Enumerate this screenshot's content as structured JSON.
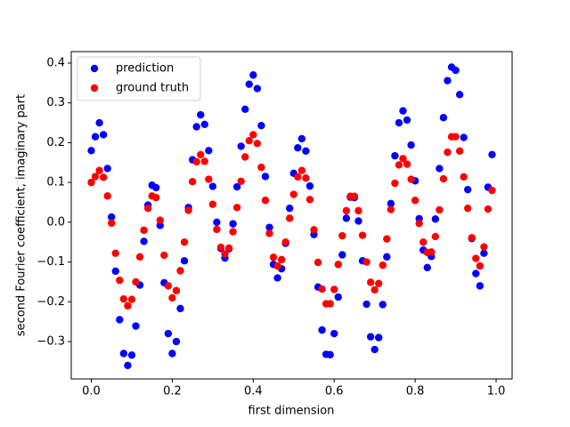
{
  "chart_data": {
    "type": "scatter",
    "xlabel": "first dimension",
    "ylabel": "second Fourier coefficient, imaginary part",
    "xlim": [
      -0.0495,
      1.0395
    ],
    "ylim": [
      -0.394,
      0.429
    ],
    "xticks": [
      {
        "value": 0,
        "label": "0.0"
      },
      0.2,
      0.4,
      0.6,
      0.8,
      {
        "value": 1,
        "label": "1.0"
      }
    ],
    "yticks": [
      {
        "value": -0.3,
        "label": "−0.3"
      },
      {
        "value": -0.2,
        "label": "−0.2"
      },
      {
        "value": -0.1,
        "label": "−0.1"
      },
      {
        "value": 0,
        "label": "0.0"
      },
      0.1,
      0.2,
      0.3,
      0.4
    ],
    "legend": "upper left",
    "x": [
      0,
      0.01,
      0.02,
      0.03,
      0.04,
      0.05,
      0.06,
      0.07,
      0.08,
      0.09,
      0.1,
      0.11,
      0.12,
      0.13,
      0.14,
      0.15,
      0.16,
      0.17,
      0.18,
      0.19,
      0.2,
      0.21,
      0.22,
      0.23,
      0.24,
      0.25,
      0.26,
      0.27,
      0.28,
      0.29,
      0.3,
      0.31,
      0.32,
      0.33,
      0.34,
      0.35,
      0.36,
      0.37,
      0.38,
      0.39,
      0.4,
      0.41,
      0.42,
      0.43,
      0.44,
      0.45,
      0.46,
      0.47,
      0.48,
      0.49,
      0.5,
      0.51,
      0.52,
      0.53,
      0.54,
      0.55,
      0.56,
      0.57,
      0.58,
      0.59,
      0.6,
      0.61,
      0.62,
      0.63,
      0.64,
      0.65,
      0.66,
      0.67,
      0.68,
      0.69,
      0.7,
      0.71,
      0.72,
      0.73,
      0.74,
      0.75,
      0.76,
      0.77,
      0.78,
      0.79,
      0.8,
      0.81,
      0.82,
      0.83,
      0.84,
      0.85,
      0.86,
      0.87,
      0.88,
      0.89,
      0.9,
      0.91,
      0.92,
      0.93,
      0.94,
      0.95,
      0.96,
      0.97,
      0.98,
      0.99
    ],
    "series": [
      {
        "name": "prediction",
        "color": "blue",
        "values": [
          0.18,
          0.215,
          0.25,
          0.22,
          0.135,
          0.013,
          -0.123,
          -0.245,
          -0.33,
          -0.36,
          -0.334,
          -0.261,
          -0.158,
          -0.048,
          0.043,
          0.093,
          0.087,
          -0.008,
          -0.152,
          -0.28,
          -0.33,
          -0.3,
          -0.217,
          -0.097,
          0.037,
          0.157,
          0.24,
          0.27,
          0.246,
          0.18,
          0.09,
          0,
          -0.066,
          -0.09,
          -0.067,
          -0.004,
          0.089,
          0.191,
          0.284,
          0.347,
          0.37,
          0.336,
          0.243,
          0.115,
          -0.013,
          -0.106,
          -0.14,
          -0.117,
          -0.053,
          0.035,
          0.123,
          0.187,
          0.21,
          0.179,
          0.091,
          -0.031,
          -0.163,
          -0.271,
          -0.332,
          -0.333,
          -0.28,
          -0.188,
          -0.082,
          0.01,
          0.063,
          0.062,
          0.003,
          -0.097,
          -0.206,
          -0.288,
          -0.32,
          -0.29,
          -0.207,
          -0.087,
          0.047,
          0.167,
          0.25,
          0.28,
          0.257,
          0.194,
          0.104,
          0.009,
          -0.07,
          -0.114,
          -0.086,
          0.008,
          0.135,
          0.263,
          0.356,
          0.39,
          0.382,
          0.321,
          0.213,
          0.082,
          -0.041,
          -0.129,
          -0.16,
          -0.078,
          0.088,
          0.17
        ]
      },
      {
        "name": "ground truth",
        "color": "red",
        "values": [
          0.1,
          0.115,
          0.13,
          0.113,
          0.066,
          -0.002,
          -0.078,
          -0.146,
          -0.193,
          -0.21,
          -0.194,
          -0.15,
          -0.087,
          -0.02,
          0.035,
          0.066,
          0.062,
          0.005,
          -0.083,
          -0.16,
          -0.19,
          -0.172,
          -0.122,
          -0.05,
          0.03,
          0.102,
          0.152,
          0.17,
          0.153,
          0.108,
          0.045,
          -0.018,
          -0.063,
          -0.08,
          -0.065,
          -0.024,
          0.037,
          0.103,
          0.164,
          0.205,
          0.22,
          0.198,
          0.138,
          0.055,
          -0.028,
          -0.088,
          -0.11,
          -0.094,
          -0.05,
          0.01,
          0.07,
          0.114,
          0.13,
          0.111,
          0.057,
          -0.019,
          -0.101,
          -0.168,
          -0.205,
          -0.205,
          -0.169,
          -0.106,
          -0.034,
          0.029,
          0.065,
          0.065,
          0.029,
          -0.033,
          -0.1,
          -0.151,
          -0.17,
          -0.154,
          -0.108,
          -0.042,
          0.032,
          0.098,
          0.144,
          0.16,
          0.146,
          0.108,
          0.055,
          -0.003,
          -0.05,
          -0.076,
          -0.075,
          -0.036,
          0.031,
          0.109,
          0.176,
          0.215,
          0.215,
          0.179,
          0.114,
          0.035,
          -0.039,
          -0.091,
          -0.11,
          -0.062,
          0.033,
          0.08
        ]
      }
    ]
  }
}
